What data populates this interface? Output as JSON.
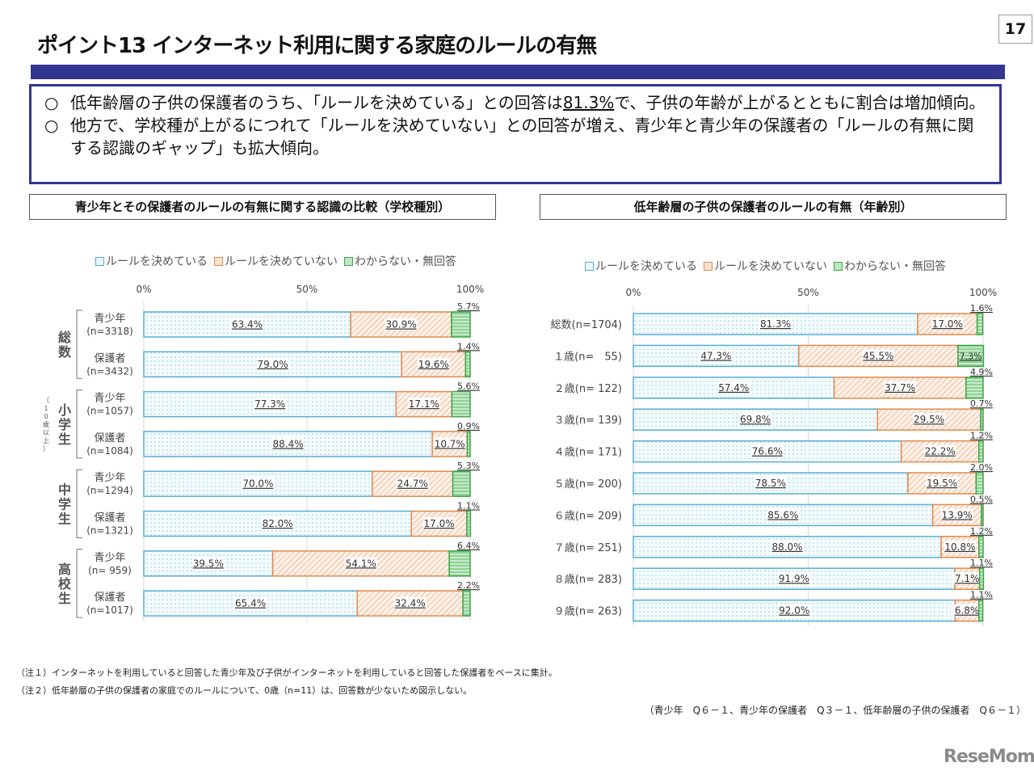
{
  "header": {
    "title": "ポイント13 インターネット利用に関する家庭のルールの有無",
    "page_number": "17"
  },
  "summary": {
    "bullet": "○",
    "items": [
      {
        "before": "低年齢層の子供の保護者のうち、「ルールを決めている」との回答は",
        "highlight": "81.3%",
        "after": "で、子供の年齢が上がるとともに割合は増加傾向。"
      },
      {
        "before": "他方で、学校種が上がるにつれて「ルールを決めていない」との回答が増え、青少年と青少年の保護者の「ルールの有無に関する認識のギャップ」も拡大傾向。",
        "highlight": "",
        "after": ""
      }
    ]
  },
  "colors": {
    "rule_set": "#5aaed0",
    "rule_not_set": "#e08a50",
    "unknown": "#3aa646",
    "accent": "#333591"
  },
  "chart_data": [
    {
      "type": "bar",
      "orientation": "horizontal-stacked-100",
      "title": "青少年とその保護者のルールの有無に関する認識の比較（学校種別）",
      "legend": [
        "ルールを決めている",
        "ルールを決めていない",
        "わからない・無回答"
      ],
      "legend_position": "top",
      "xlim": [
        0,
        100
      ],
      "xticks": [
        "0%",
        "50%",
        "100%"
      ],
      "groups": [
        {
          "label": "総数",
          "sub": "",
          "rows": [
            0,
            1
          ]
        },
        {
          "label": "小学生",
          "sub": "（10歳以上）",
          "rows": [
            2,
            3
          ]
        },
        {
          "label": "中学生",
          "sub": "",
          "rows": [
            4,
            5
          ]
        },
        {
          "label": "高校生",
          "sub": "",
          "rows": [
            6,
            7
          ]
        }
      ],
      "categories": [
        {
          "name": "青少年",
          "n": "(n=3318)"
        },
        {
          "name": "保護者",
          "n": "(n=3432)"
        },
        {
          "name": "青少年",
          "n": "(n=1057)"
        },
        {
          "name": "保護者",
          "n": "(n=1084)"
        },
        {
          "name": "青少年",
          "n": "(n=1294)"
        },
        {
          "name": "保護者",
          "n": "(n=1321)"
        },
        {
          "name": "青少年",
          "n": "(n= 959)"
        },
        {
          "name": "保護者",
          "n": "(n=1017)"
        }
      ],
      "series": [
        {
          "name": "ルールを決めている",
          "values": [
            63.4,
            79.0,
            77.3,
            88.4,
            70.0,
            82.0,
            39.5,
            65.4
          ]
        },
        {
          "name": "ルールを決めていない",
          "values": [
            30.9,
            19.6,
            17.1,
            10.7,
            24.7,
            17.0,
            54.1,
            32.4
          ]
        },
        {
          "name": "わからない・無回答",
          "values": [
            5.7,
            1.4,
            5.6,
            0.9,
            5.3,
            1.1,
            6.4,
            2.2
          ]
        }
      ]
    },
    {
      "type": "bar",
      "orientation": "horizontal-stacked-100",
      "title": "低年齢層の子供の保護者のルールの有無（年齢別）",
      "legend": [
        "ルールを決めている",
        "ルールを決めていない",
        "わからない・無回答"
      ],
      "legend_position": "top",
      "xlim": [
        0,
        100
      ],
      "xticks": [
        "0%",
        "50%",
        "100%"
      ],
      "categories": [
        {
          "name": "総数(n=1704)"
        },
        {
          "name": "１歳(n=　55)"
        },
        {
          "name": "２歳(n= 122)"
        },
        {
          "name": "３歳(n= 139)"
        },
        {
          "name": "４歳(n= 171)"
        },
        {
          "name": "５歳(n= 200)"
        },
        {
          "name": "６歳(n= 209)"
        },
        {
          "name": "７歳(n= 251)"
        },
        {
          "name": "８歳(n= 283)"
        },
        {
          "name": "９歳(n= 263)"
        }
      ],
      "series": [
        {
          "name": "ルールを決めている",
          "values": [
            81.3,
            47.3,
            57.4,
            69.8,
            76.6,
            78.5,
            85.6,
            88.0,
            91.9,
            92.0
          ]
        },
        {
          "name": "ルールを決めていない",
          "values": [
            17.0,
            45.5,
            37.7,
            29.5,
            22.2,
            19.5,
            13.9,
            10.8,
            7.1,
            6.8
          ]
        },
        {
          "name": "わからない・無回答",
          "values": [
            1.6,
            7.3,
            4.9,
            0.7,
            1.2,
            2.0,
            0.5,
            1.2,
            1.1,
            1.1
          ]
        }
      ]
    }
  ],
  "notes": [
    "（注１）インターネットを利用していると回答した青少年及び子供がインターネットを利用していると回答した保護者をベースに集計。",
    "（注２）低年齢層の子供の保護者の家庭でのルールについて、0歳（n=11）は、回答数が少ないため図示しない。"
  ],
  "source": "（青少年　Q６－１、青少年の保護者　Q３－１、低年齢層の子供の保護者　Q６－１）",
  "logo": "ReseMom"
}
